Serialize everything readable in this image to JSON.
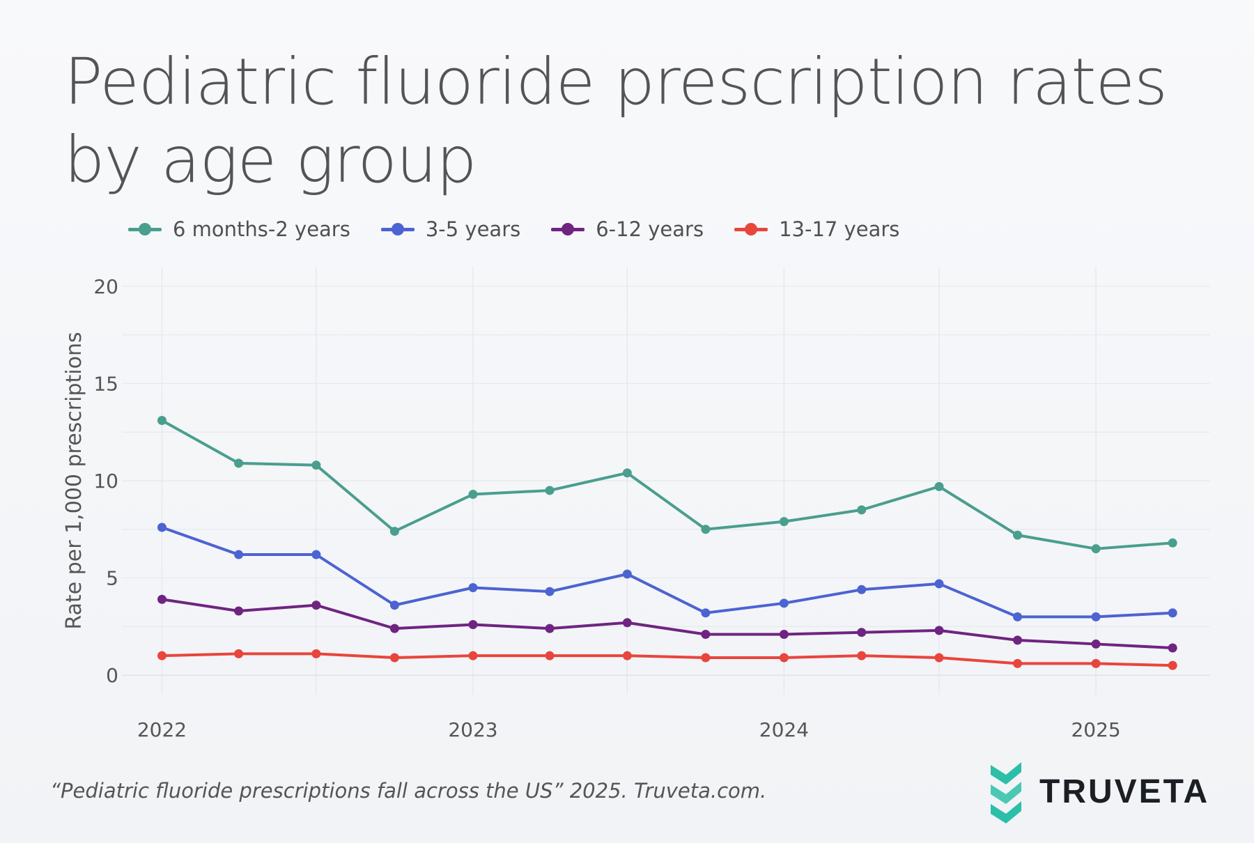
{
  "title": "Pediatric fluoride prescription rates by age group",
  "citation": "“Pediatric fluoride prescriptions fall across the US” 2025. Truveta.com.",
  "brand": {
    "name": "TRUVETA",
    "logo_icon": "truveta-chevron-logo-icon",
    "logo_color": "#2bbfa8"
  },
  "chart_data": {
    "type": "line",
    "ylabel": "Rate per 1,000 prescriptions",
    "xlabel": "",
    "x": [
      "2022-01-01",
      "2022-04-01",
      "2022-07-01",
      "2022-10-01",
      "2023-01-01",
      "2023-04-01",
      "2023-07-01",
      "2023-10-01",
      "2024-01-01",
      "2024-04-01",
      "2024-07-01",
      "2024-10-01",
      "2025-01-01",
      "2025-04-01"
    ],
    "xlim": [
      "2021-11-15",
      "2025-05-15"
    ],
    "xticks": [
      {
        "date": "2022-01-01",
        "label": "2022"
      },
      {
        "date": "2023-01-01",
        "label": "2023"
      },
      {
        "date": "2024-01-01",
        "label": "2024"
      },
      {
        "date": "2025-01-01",
        "label": "2025"
      }
    ],
    "ylim": [
      -1,
      21
    ],
    "yticks": [
      0,
      5,
      10,
      15,
      20
    ],
    "grid": true,
    "legend_position": "top-left",
    "series": [
      {
        "name": "6 months-2 years",
        "color": "#4a9e8e",
        "values": [
          13.1,
          10.9,
          10.8,
          7.4,
          9.3,
          9.5,
          10.4,
          7.5,
          7.9,
          8.5,
          9.7,
          7.2,
          6.5,
          6.8
        ]
      },
      {
        "name": "3-5 years",
        "color": "#4c63d2",
        "values": [
          7.6,
          6.2,
          6.2,
          3.6,
          4.5,
          4.3,
          5.2,
          3.2,
          3.7,
          4.4,
          4.7,
          3.0,
          3.0,
          3.2
        ]
      },
      {
        "name": "6-12 years",
        "color": "#6f2481",
        "values": [
          3.9,
          3.3,
          3.6,
          2.4,
          2.6,
          2.4,
          2.7,
          2.1,
          2.1,
          2.2,
          2.3,
          1.8,
          1.6,
          1.4
        ]
      },
      {
        "name": "13-17 years",
        "color": "#e8453c",
        "values": [
          1.0,
          1.1,
          1.1,
          0.9,
          1.0,
          1.0,
          1.0,
          0.9,
          0.9,
          1.0,
          0.9,
          0.6,
          0.6,
          0.5
        ]
      }
    ]
  }
}
